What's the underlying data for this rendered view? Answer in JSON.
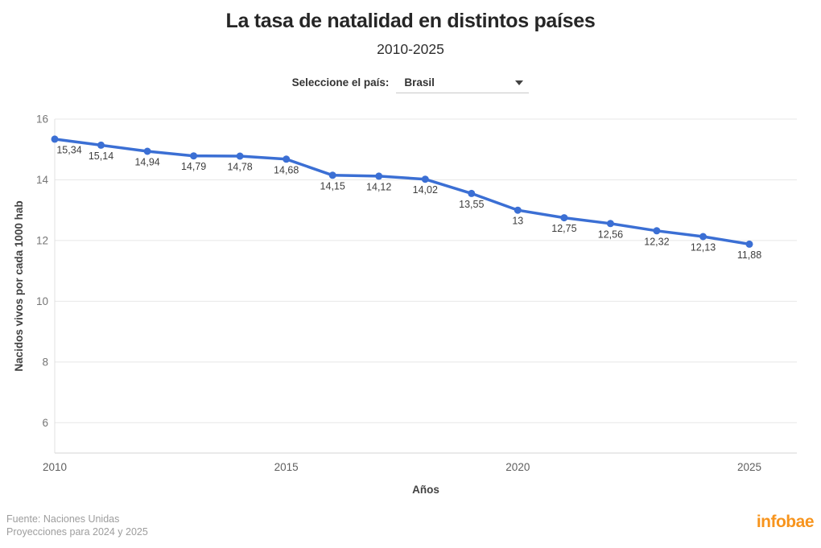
{
  "header": {
    "title": "La tasa de natalidad en distintos países",
    "subtitle": "2010-2025"
  },
  "selector": {
    "label": "Seleccione el país:",
    "value": "Brasil"
  },
  "chart_data": {
    "type": "line",
    "x": [
      2010,
      2011,
      2012,
      2013,
      2014,
      2015,
      2016,
      2017,
      2018,
      2019,
      2020,
      2021,
      2022,
      2023,
      2024,
      2025
    ],
    "values": [
      15.34,
      15.14,
      14.94,
      14.79,
      14.78,
      14.68,
      14.15,
      14.12,
      14.02,
      13.55,
      13,
      12.75,
      12.56,
      12.32,
      12.13,
      11.88
    ],
    "point_labels": [
      "15,34",
      "15,14",
      "14,94",
      "14,79",
      "14,78",
      "14,68",
      "14,15",
      "14,12",
      "14,02",
      "13,55",
      "13",
      "12,75",
      "12,56",
      "12,32",
      "12,13",
      "11,88"
    ],
    "xlabel": "Años",
    "ylabel": "Nacidos vivos por cada 1000 hab",
    "xticks": [
      2010,
      2015,
      2020,
      2025
    ],
    "yticks": [
      6,
      8,
      10,
      12,
      14,
      16
    ],
    "ylim": [
      5,
      16
    ],
    "grid": true,
    "legend": "none",
    "line_color": "#3B6FD4",
    "grid_color": "#e7e7e7",
    "tick_label_color": "#757575",
    "xtick_label_color": "#5f5f5f",
    "point_label_color": "#3d3d3d",
    "axis_title_color": "#424242"
  },
  "footer": {
    "source": "Fuente: Naciones Unidas",
    "note": "Proyecciones para 2024 y 2025",
    "brand": "infobae",
    "brand_color": "#F7941D"
  }
}
